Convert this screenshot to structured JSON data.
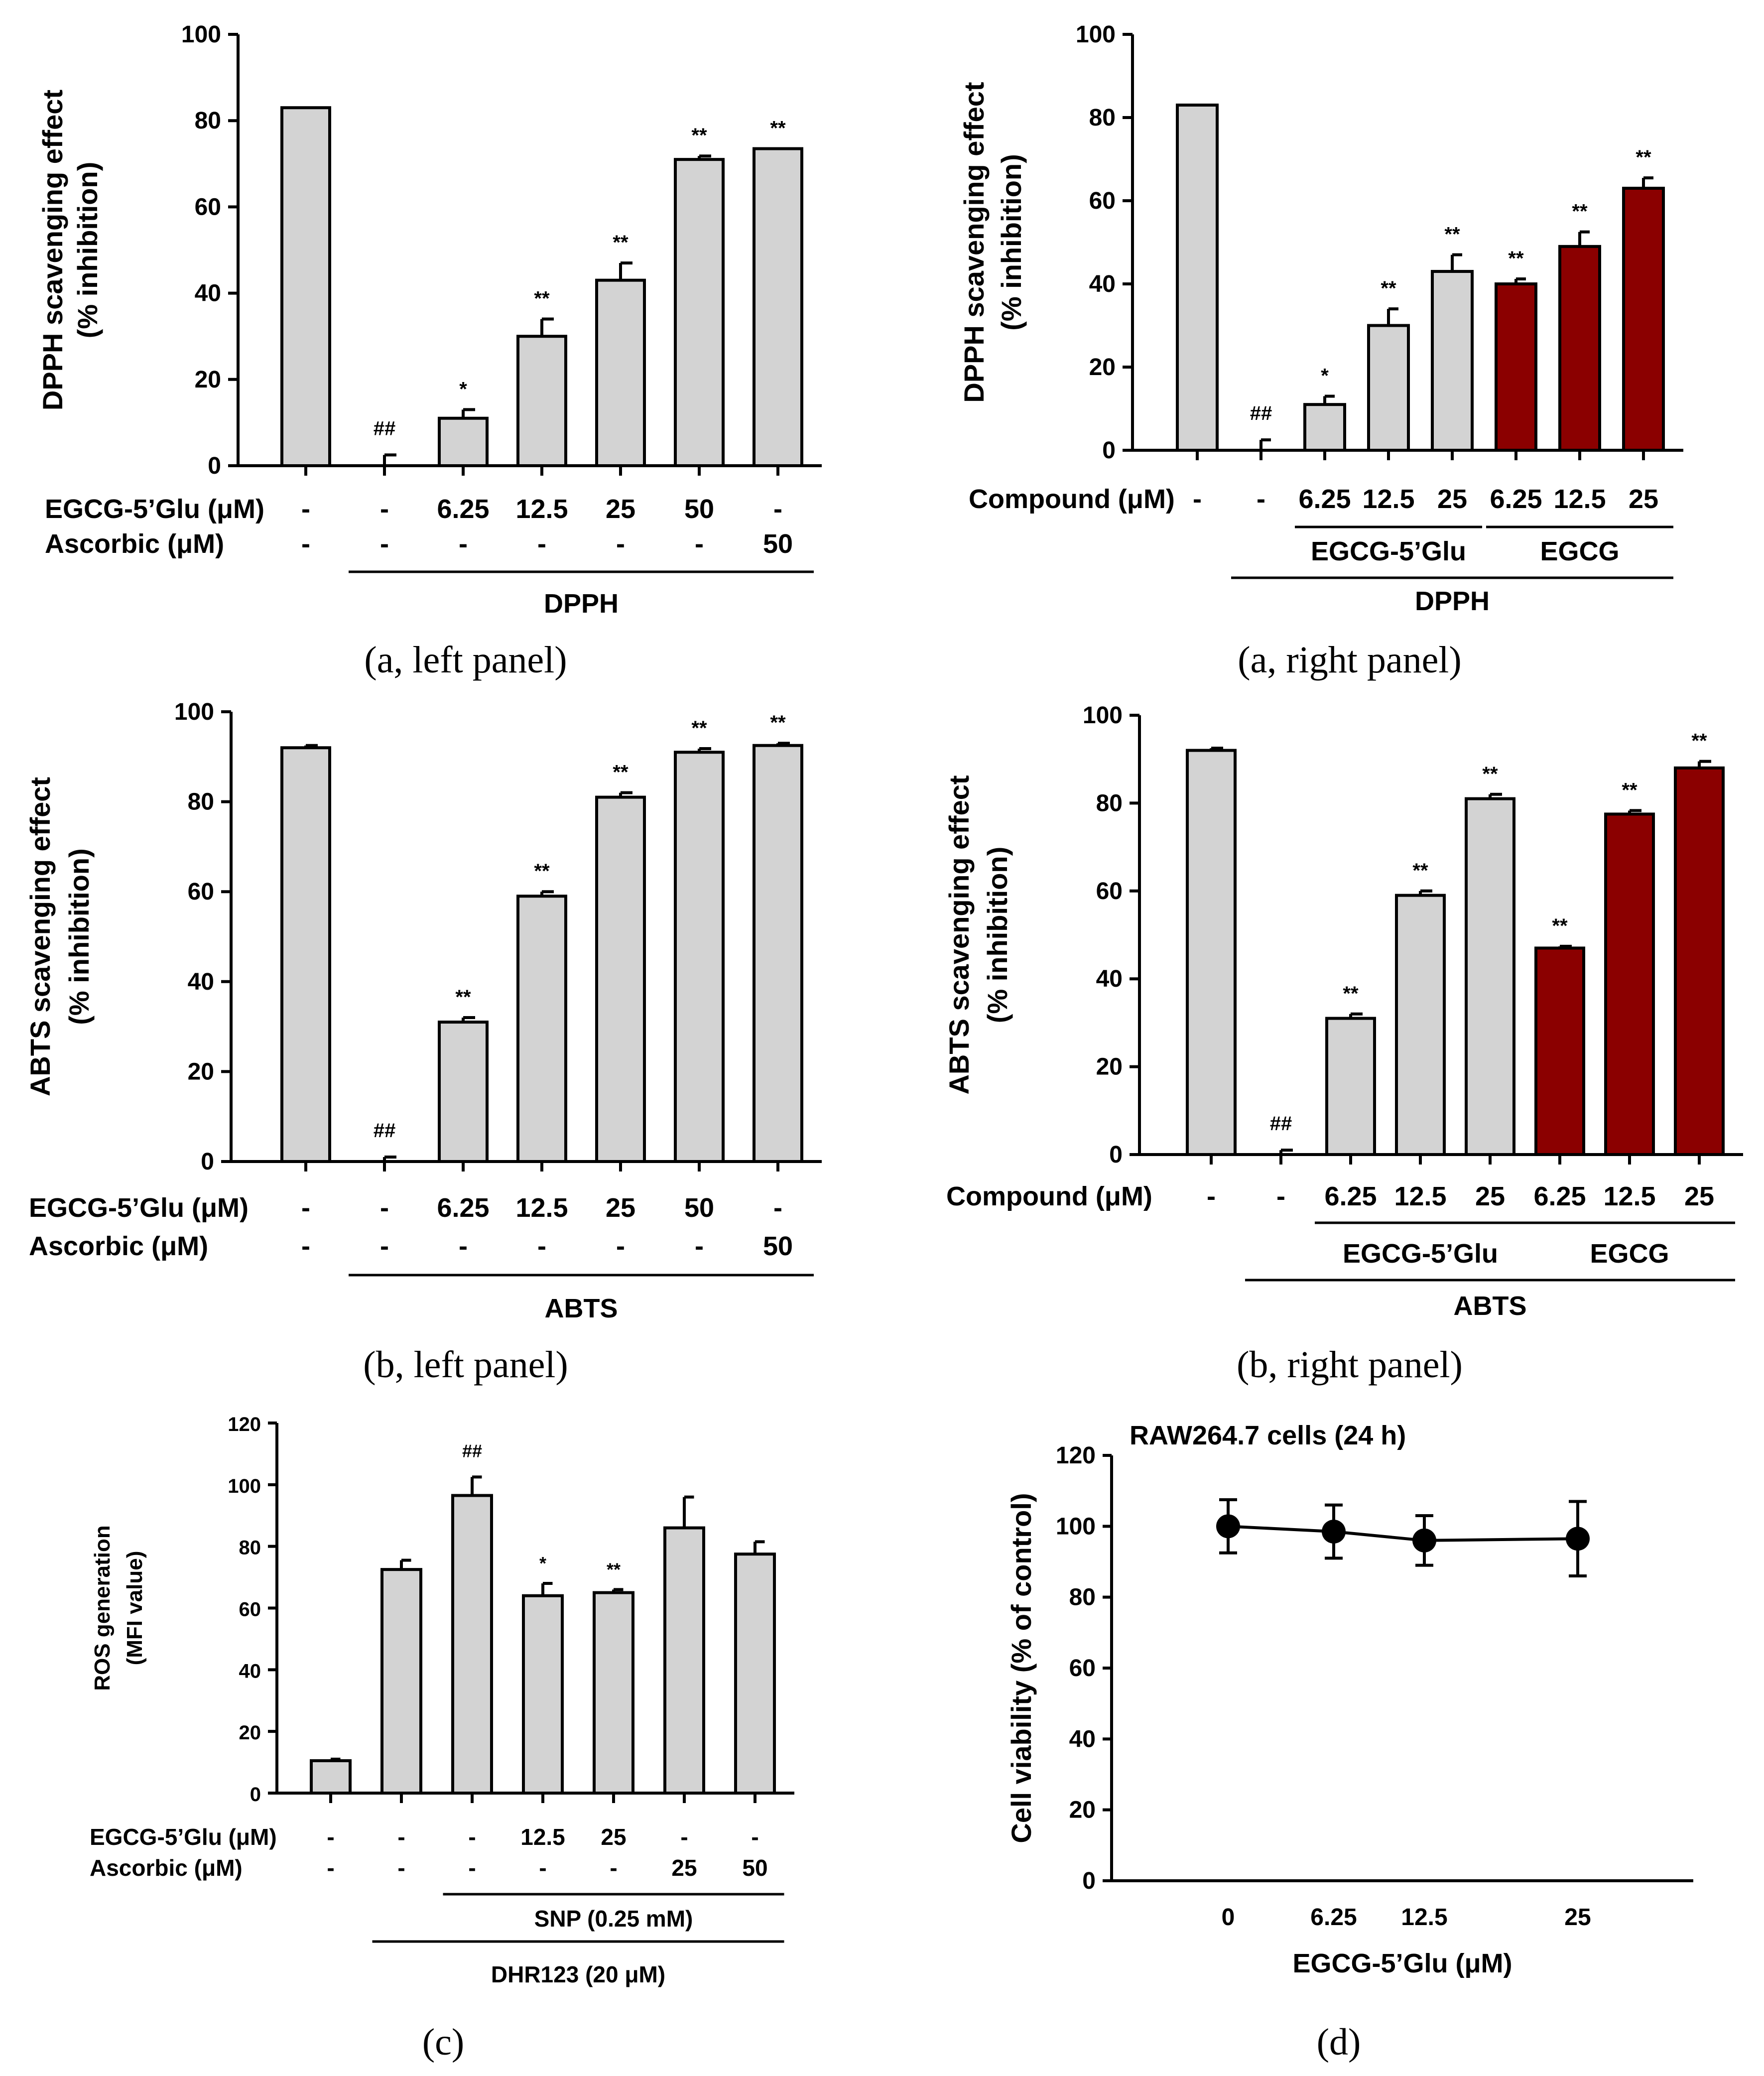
{
  "chart_data": [
    {
      "id": "a-left",
      "type": "bar",
      "caption": "(a, left panel)",
      "ylabel": [
        "DPPH scavenging effect",
        "(% inhibition)"
      ],
      "ylim": [
        0,
        100
      ],
      "yticks": [
        "0",
        "20",
        "40",
        "60",
        "80",
        "100"
      ],
      "values": [
        83,
        0,
        11,
        30,
        43,
        71,
        73.5
      ],
      "errors": [
        0,
        2.5,
        2,
        4,
        4,
        0.8,
        0
      ],
      "colors": [
        "#d3d3d3",
        "#d3d3d3",
        "#d3d3d3",
        "#d3d3d3",
        "#d3d3d3",
        "#d3d3d3",
        "#d3d3d3"
      ],
      "significance": [
        "",
        "##",
        "*",
        "**",
        "**",
        "**",
        "**"
      ],
      "conditions": [
        {
          "label": "EGCG-5’Glu (μM)",
          "values": [
            "-",
            "-",
            "6.25",
            "12.5",
            "25",
            "50",
            "-"
          ]
        },
        {
          "label": "Ascorbic (μM)",
          "values": [
            "-",
            "-",
            "-",
            "-",
            "-",
            "-",
            "50"
          ]
        }
      ],
      "groups": [
        {
          "label": "DPPH",
          "from": 1,
          "to": 6
        }
      ]
    },
    {
      "id": "a-right",
      "type": "bar",
      "caption": "(a, right panel)",
      "ylabel": [
        "DPPH scavenging effect",
        "(% inhibition)"
      ],
      "ylim": [
        0,
        100
      ],
      "yticks": [
        "0",
        "20",
        "40",
        "60",
        "80",
        "100"
      ],
      "values": [
        83,
        0,
        11,
        30,
        43,
        40,
        49,
        63
      ],
      "errors": [
        0,
        2.5,
        2,
        4,
        4,
        1.2,
        3.5,
        2.5
      ],
      "colors": [
        "#d3d3d3",
        "#d3d3d3",
        "#d3d3d3",
        "#d3d3d3",
        "#d3d3d3",
        "#8b0000",
        "#8b0000",
        "#8b0000"
      ],
      "significance": [
        "",
        "##",
        "*",
        "**",
        "**",
        "**",
        "**",
        "**"
      ],
      "conditions": [
        {
          "label": "Compound (μM)",
          "values": [
            "-",
            "-",
            "6.25",
            "12.5",
            "25",
            "6.25",
            "12.5",
            "25"
          ]
        }
      ],
      "groups": [
        {
          "label": "EGCG-5’Glu",
          "from": 2,
          "to": 4
        },
        {
          "label": "EGCG",
          "from": 5,
          "to": 7
        },
        {
          "label": "DPPH",
          "from": 1,
          "to": 7
        }
      ]
    },
    {
      "id": "b-left",
      "type": "bar",
      "caption": "(b, left panel)",
      "ylabel": [
        "ABTS scavenging effect",
        "(% inhibition)"
      ],
      "ylim": [
        0,
        100
      ],
      "yticks": [
        "0",
        "20",
        "40",
        "60",
        "80",
        "100"
      ],
      "values": [
        92,
        0,
        31,
        59,
        81,
        91,
        92.5
      ],
      "errors": [
        0.5,
        1,
        1,
        1,
        1,
        0.8,
        0.5
      ],
      "colors": [
        "#d3d3d3",
        "#d3d3d3",
        "#d3d3d3",
        "#d3d3d3",
        "#d3d3d3",
        "#d3d3d3",
        "#d3d3d3"
      ],
      "significance": [
        "",
        "##",
        "**",
        "**",
        "**",
        "**",
        "**"
      ],
      "conditions": [
        {
          "label": "EGCG-5’Glu (μM)",
          "values": [
            "-",
            "-",
            "6.25",
            "12.5",
            "25",
            "50",
            "-"
          ]
        },
        {
          "label": "Ascorbic (μM)",
          "values": [
            "-",
            "-",
            "-",
            "-",
            "-",
            "-",
            "50"
          ]
        }
      ],
      "groups": [
        {
          "label": "ABTS",
          "from": 1,
          "to": 6
        }
      ]
    },
    {
      "id": "b-right",
      "type": "bar",
      "caption": "(b, right panel)",
      "ylabel": [
        "ABTS scavenging effect",
        "(% inhibition)"
      ],
      "ylim": [
        0,
        100
      ],
      "yticks": [
        "0",
        "20",
        "40",
        "60",
        "80",
        "100"
      ],
      "values": [
        92,
        0,
        31,
        59,
        81,
        47,
        77.5,
        88
      ],
      "errors": [
        0.5,
        1,
        1,
        1,
        1,
        0.4,
        0.8,
        1.5
      ],
      "colors": [
        "#d3d3d3",
        "#d3d3d3",
        "#d3d3d3",
        "#d3d3d3",
        "#d3d3d3",
        "#8b0000",
        "#8b0000",
        "#8b0000"
      ],
      "significance": [
        "",
        "##",
        "**",
        "**",
        "**",
        "**",
        "**",
        "**"
      ],
      "conditions": [
        {
          "label": "Compound (μM)",
          "values": [
            "-",
            "-",
            "6.25",
            "12.5",
            "25",
            "6.25",
            "12.5",
            "25"
          ]
        }
      ],
      "groups": [
        {
          "label": "EGCG-5’Glu",
          "from": 2,
          "to": 4
        },
        {
          "label": "EGCG",
          "from": 5,
          "to": 7
        },
        {
          "label": "ABTS",
          "from": 1,
          "to": 7
        }
      ]
    },
    {
      "id": "c",
      "type": "bar",
      "caption": "(c)",
      "ylabel": [
        "ROS generation",
        "(MFI value)"
      ],
      "ylim": [
        0,
        120
      ],
      "yticks": [
        "0",
        "20",
        "40",
        "60",
        "80",
        "100",
        "120"
      ],
      "values": [
        10.5,
        72.5,
        96.5,
        64,
        65,
        86,
        77.5
      ],
      "errors": [
        0.5,
        3,
        6,
        4,
        1,
        10,
        4
      ],
      "colors": [
        "#d3d3d3",
        "#d3d3d3",
        "#d3d3d3",
        "#d3d3d3",
        "#d3d3d3",
        "#d3d3d3",
        "#d3d3d3"
      ],
      "significance": [
        "",
        "",
        "##",
        "*",
        "**",
        "",
        ""
      ],
      "conditions": [
        {
          "label": "EGCG-5’Glu (μM)",
          "values": [
            "-",
            "-",
            "-",
            "12.5",
            "25",
            "-",
            "-"
          ]
        },
        {
          "label": "Ascorbic (μM)",
          "values": [
            "-",
            "-",
            "-",
            "-",
            "-",
            "25",
            "50"
          ]
        }
      ],
      "groups": [
        {
          "label": "SNP (0.25 mM)",
          "from": 2,
          "to": 6
        },
        {
          "label": "DHR123 (20 μM)",
          "from": 1,
          "to": 6
        }
      ]
    },
    {
      "id": "d",
      "type": "line",
      "caption": "(d)",
      "title": "RAW264.7 cells (24 h)",
      "ylabel": [
        "Cell viability (% of control)"
      ],
      "xlabel": "EGCG-5’Glu (μM)",
      "ylim": [
        0,
        120
      ],
      "yticks": [
        "0",
        "20",
        "40",
        "60",
        "80",
        "100",
        "120"
      ],
      "x": [
        "0",
        "6.25",
        "12.5",
        "25"
      ],
      "values": [
        100,
        98.5,
        96,
        96.5
      ],
      "errors": [
        7.5,
        7.5,
        7,
        10.5
      ]
    }
  ]
}
